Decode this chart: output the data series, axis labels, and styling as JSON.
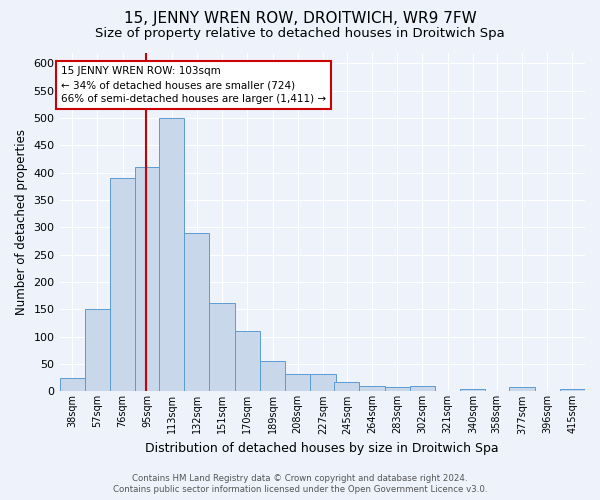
{
  "title": "15, JENNY WREN ROW, DROITWICH, WR9 7FW",
  "subtitle": "Size of property relative to detached houses in Droitwich Spa",
  "xlabel": "Distribution of detached houses by size in Droitwich Spa",
  "ylabel": "Number of detached properties",
  "footer_line1": "Contains HM Land Registry data © Crown copyright and database right 2024.",
  "footer_line2": "Contains public sector information licensed under the Open Government Licence v3.0.",
  "bin_labels": [
    "38sqm",
    "57sqm",
    "76sqm",
    "95sqm",
    "113sqm",
    "132sqm",
    "151sqm",
    "170sqm",
    "189sqm",
    "208sqm",
    "227sqm",
    "245sqm",
    "264sqm",
    "283sqm",
    "302sqm",
    "321sqm",
    "340sqm",
    "358sqm",
    "377sqm",
    "396sqm",
    "415sqm"
  ],
  "bin_values": [
    25,
    150,
    390,
    410,
    500,
    290,
    162,
    110,
    55,
    32,
    32,
    18,
    10,
    8,
    10,
    0,
    5,
    0,
    8,
    0,
    5
  ],
  "bin_edges": [
    38,
    57,
    76,
    95,
    113,
    132,
    151,
    170,
    189,
    208,
    227,
    245,
    264,
    283,
    302,
    321,
    340,
    358,
    377,
    396,
    415
  ],
  "bin_width": 19,
  "property_sqm": 103,
  "vline_x": 103,
  "annotation_text": "15 JENNY WREN ROW: 103sqm\n← 34% of detached houses are smaller (724)\n66% of semi-detached houses are larger (1,411) →",
  "bar_color": "#c8d8ea",
  "bar_edge_color": "#5b9bd5",
  "vline_color": "#cc0000",
  "annotation_box_color": "#ffffff",
  "annotation_box_edge": "#cc0000",
  "background_color": "#edf2fb",
  "grid_color": "#ffffff",
  "ylim": [
    0,
    620
  ],
  "title_fontsize": 11,
  "subtitle_fontsize": 9.5,
  "ylabel_fontsize": 8.5,
  "xlabel_fontsize": 9
}
